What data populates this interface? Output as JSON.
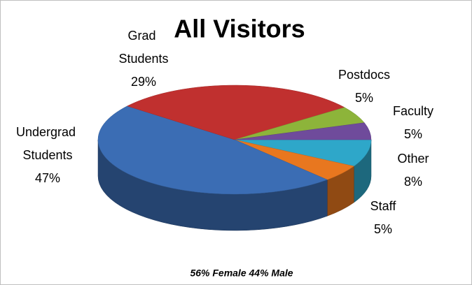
{
  "chart_data": {
    "type": "pie",
    "title": "All Visitors",
    "categories": [
      "Other",
      "Staff",
      "Undergrad Students",
      "Grad Students",
      "Postdocs",
      "Faculty"
    ],
    "values": [
      8,
      5,
      47,
      29,
      5,
      5
    ],
    "value_labels": [
      "8%",
      "5%",
      "47%",
      "29%",
      "5%",
      "5%"
    ],
    "colors": [
      "#2ea7c9",
      "#e8771f",
      "#3b6db4",
      "#c0302f",
      "#8db43a",
      "#6f4b9b"
    ],
    "annotation": "56% Female  44% Male"
  }
}
